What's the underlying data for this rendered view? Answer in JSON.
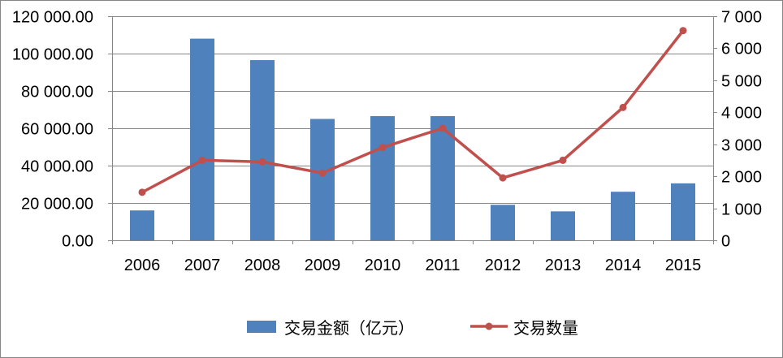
{
  "chart_data": {
    "type": "bar",
    "categories": [
      "2006",
      "2007",
      "2008",
      "2009",
      "2010",
      "2011",
      "2012",
      "2013",
      "2014",
      "2015"
    ],
    "series": [
      {
        "name": "交易金额（亿元）",
        "type": "bar",
        "axis": "left",
        "color": "#4F81BD",
        "values": [
          16000,
          108000,
          96500,
          65000,
          66500,
          66500,
          19000,
          15500,
          26000,
          30500
        ]
      },
      {
        "name": "交易数量",
        "type": "line",
        "axis": "right",
        "color": "#C0504D",
        "values": [
          1500,
          2500,
          2450,
          2100,
          2900,
          3500,
          1950,
          2500,
          4150,
          6550
        ]
      }
    ],
    "y_left": {
      "range": [
        0,
        120000
      ],
      "tick_labels": [
        "0.00",
        "20 000.00",
        "40 000.00",
        "60 000.00",
        "80 000.00",
        "100 000.00",
        "120 000.00"
      ]
    },
    "y_right": {
      "range": [
        0,
        7000
      ],
      "tick_labels": [
        "0",
        "1 000",
        "2 000",
        "3 000",
        "4 000",
        "5 000",
        "6 000",
        "7 000"
      ]
    },
    "grid": true,
    "legend": "bottom",
    "axis_color": "#868686",
    "grid_color": "#868686"
  }
}
